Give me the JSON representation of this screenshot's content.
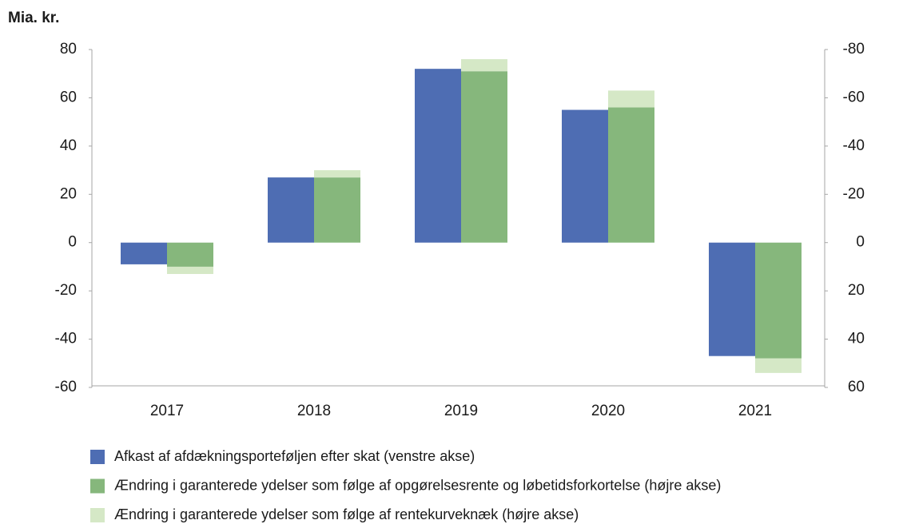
{
  "chart_data": {
    "type": "bar",
    "y_label": "Mia. kr.",
    "categories": [
      "2017",
      "2018",
      "2019",
      "2020",
      "2021"
    ],
    "series": [
      {
        "name": "Afkast af afdækningsporteføljen efter skat (venstre akse)",
        "color": "#4e6db3",
        "values": [
          -9,
          27,
          72,
          55,
          -47
        ]
      },
      {
        "name": "Ændring i garanterede ydelser som følge af opgørelsesrente og løbetidsforkortelse (højre akse)",
        "color": "#86b77c",
        "axis": "y2",
        "values": [
          10,
          -27,
          -71,
          -56,
          48
        ]
      },
      {
        "name": "Ændring i garanterede ydelser som følge af rentekurveknæk (højre akse)",
        "color": "#d5e8c6",
        "axis": "y2",
        "stacked": true,
        "values": [
          3,
          -3,
          -5,
          -7,
          6
        ]
      }
    ],
    "ylim": [
      -60,
      80
    ],
    "yticks": [
      -60,
      -40,
      -20,
      0,
      20,
      40,
      60,
      80
    ],
    "y2lim": [
      60,
      -80
    ],
    "y2ticks": [
      60,
      40,
      20,
      0,
      -20,
      -40,
      -60,
      -80
    ]
  }
}
